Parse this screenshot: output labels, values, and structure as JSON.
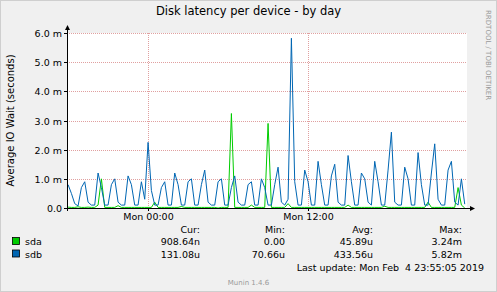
{
  "chart_data": {
    "type": "line",
    "title": "Disk latency per device - by day",
    "y_label": "Average IO Wait (seconds)",
    "x": [
      -6,
      -5.75,
      -5.5,
      -5.25,
      -5,
      -4.75,
      -4.5,
      -4.25,
      -4,
      -3.75,
      -3.5,
      -3.25,
      -3,
      -2.75,
      -2.5,
      -2.25,
      -2,
      -1.75,
      -1.5,
      -1.25,
      -1,
      -0.75,
      -0.5,
      -0.25,
      0,
      0.25,
      0.5,
      0.75,
      1,
      1.25,
      1.5,
      1.75,
      2,
      2.25,
      2.5,
      2.75,
      3,
      3.25,
      3.5,
      3.75,
      4,
      4.25,
      4.5,
      4.75,
      5,
      5.25,
      5.5,
      5.75,
      6,
      6.25,
      6.5,
      6.75,
      7,
      7.25,
      7.5,
      7.75,
      8,
      8.25,
      8.5,
      8.75,
      9,
      9.25,
      9.5,
      9.75,
      10,
      10.25,
      10.5,
      10.75,
      11,
      11.25,
      11.5,
      11.75,
      12,
      12.25,
      12.5,
      12.75,
      13,
      13.25,
      13.5,
      13.75,
      14,
      14.25,
      14.5,
      14.75,
      15,
      15.25,
      15.5,
      15.75,
      16,
      16.25,
      16.5,
      16.75,
      17,
      17.25,
      17.5,
      17.75,
      18,
      18.25,
      18.5,
      18.75,
      19,
      19.25,
      19.5,
      19.75,
      20,
      20.25,
      20.5,
      20.75,
      21,
      21.25,
      21.5,
      21.75,
      22,
      22.25,
      22.5,
      22.75,
      23,
      23.25,
      23.5,
      23.75
    ],
    "xlim": [
      -6.08,
      23.92
    ],
    "xticks": [
      {
        "value": 0,
        "label": "Mon 00:00"
      },
      {
        "value": 12,
        "label": "Mon 12:00"
      }
    ],
    "ylim": [
      0,
      0.006
    ],
    "yticks": [
      {
        "value": 0,
        "label": "0.0"
      },
      {
        "value": 0.001,
        "label": "1.0 m"
      },
      {
        "value": 0.002,
        "label": "2.0 m"
      },
      {
        "value": 0.003,
        "label": "3.0 m"
      },
      {
        "value": 0.004,
        "label": "4.0 m"
      },
      {
        "value": 0.005,
        "label": "5.0 m"
      },
      {
        "value": 0.006,
        "label": "6.0 m"
      }
    ],
    "grid": true,
    "legend": "bottom",
    "stat_labels": [
      "Cur:",
      "Min:",
      "Avg:",
      "Max:"
    ],
    "series": [
      {
        "name": "sda",
        "color": "#00CC00",
        "stats": [
          "908.64n",
          "0.00",
          "45.89u",
          "3.24m"
        ],
        "values": [
          3e-05,
          2e-05,
          2e-05,
          4e-05,
          2e-05,
          2e-05,
          3e-05,
          2e-05,
          2e-05,
          0.0001,
          0.001,
          2e-05,
          2e-05,
          2e-05,
          2e-05,
          8e-05,
          2e-05,
          2e-05,
          2e-05,
          2e-05,
          2e-05,
          2e-05,
          2e-05,
          2e-05,
          2e-05,
          2e-05,
          0.0002,
          2e-05,
          2e-05,
          2e-05,
          2e-05,
          2e-05,
          2e-05,
          2e-05,
          5e-05,
          2e-05,
          2e-05,
          2e-05,
          2e-05,
          2e-05,
          2e-05,
          2e-05,
          2e-05,
          2e-05,
          2e-05,
          0,
          2e-05,
          2e-05,
          2e-05,
          0.00324,
          2e-05,
          2e-05,
          2e-05,
          2e-05,
          2e-05,
          0.0001,
          2e-05,
          2e-05,
          2e-05,
          2e-05,
          0.0029,
          2e-05,
          2e-05,
          2e-05,
          2e-05,
          2e-05,
          0.00015,
          2e-05,
          2e-05,
          2e-05,
          2e-05,
          2e-05,
          2e-05,
          2e-05,
          2e-05,
          2e-05,
          2e-05,
          2e-05,
          2e-05,
          2e-05,
          2e-05,
          2e-05,
          2e-05,
          2e-05,
          0.0001,
          2e-05,
          2e-05,
          2e-05,
          2e-05,
          2e-05,
          2e-05,
          2e-05,
          2e-05,
          2e-05,
          2e-05,
          6e-05,
          2e-05,
          2e-05,
          2e-05,
          2e-05,
          2e-05,
          2e-05,
          2e-05,
          2e-05,
          2e-05,
          2e-05,
          2e-05,
          2e-05,
          0.0002,
          2e-05,
          2e-05,
          2e-05,
          2e-05,
          2e-05,
          2e-05,
          2e-05,
          2e-05,
          0.0007,
          0.0001,
          9.0864e-07
        ]
      },
      {
        "name": "sdb",
        "color": "#0066B3",
        "stats": [
          "131.08u",
          "70.66u",
          "433.56u",
          "5.82m"
        ],
        "values": [
          0.0008,
          0.0005,
          0.00015,
          7.066e-05,
          0.0007,
          0.0009,
          0.0002,
          0.0001,
          0.0001,
          0.0012,
          0.0007,
          0.0001,
          0.0001,
          0.0008,
          0.001,
          0.0002,
          0.0001,
          0.0001,
          0.0011,
          0.0008,
          0.0001,
          0.0001,
          0.0009,
          0.0003,
          0.00225,
          0.0006,
          0.0001,
          0.0001,
          0.0007,
          0.0009,
          0.0001,
          0.0001,
          0.0012,
          0.0008,
          0.0001,
          0.0001,
          0.0009,
          0.001,
          0.0001,
          0.0001,
          0.0008,
          0.0013,
          0.0002,
          0.0001,
          0.0001,
          0.0009,
          0.001,
          0.0001,
          0.0001,
          0.0007,
          0.0011,
          0.0002,
          0.0001,
          0.0001,
          0.0008,
          0.0009,
          0.0001,
          0.0001,
          0.001,
          0.0007,
          0.0001,
          0.0001,
          0.0008,
          0.0014,
          0.0002,
          0.0001,
          0.0003,
          0.00582,
          0.0009,
          0.0001,
          0.0001,
          0.0013,
          0.0009,
          0.0001,
          0.0001,
          0.0016,
          0.0008,
          0.0001,
          0.0001,
          0.0011,
          0.0015,
          0.0002,
          0.0001,
          0.0001,
          0.0018,
          0.0009,
          0.0001,
          0.0001,
          0.0012,
          0.001,
          0.0002,
          0.0001,
          0.0016,
          0.0009,
          0.0001,
          0.0001,
          0.0013,
          0.0026,
          0.0002,
          0.0001,
          0.0001,
          0.0014,
          0.001,
          0.0001,
          0.0001,
          0.0019,
          0.0008,
          0.0001,
          0.0001,
          0.0012,
          0.0022,
          0.0003,
          0.0001,
          0.0001,
          0.0013,
          0.0016,
          0.0002,
          0.0001,
          0.001,
          0.00013108
        ]
      }
    ],
    "footer": "Last update: Mon Feb  4 23:55:05 2019",
    "credit": "Munin 1.4.6",
    "watermark": "RRDTOOL / TOBI OETIKER"
  }
}
